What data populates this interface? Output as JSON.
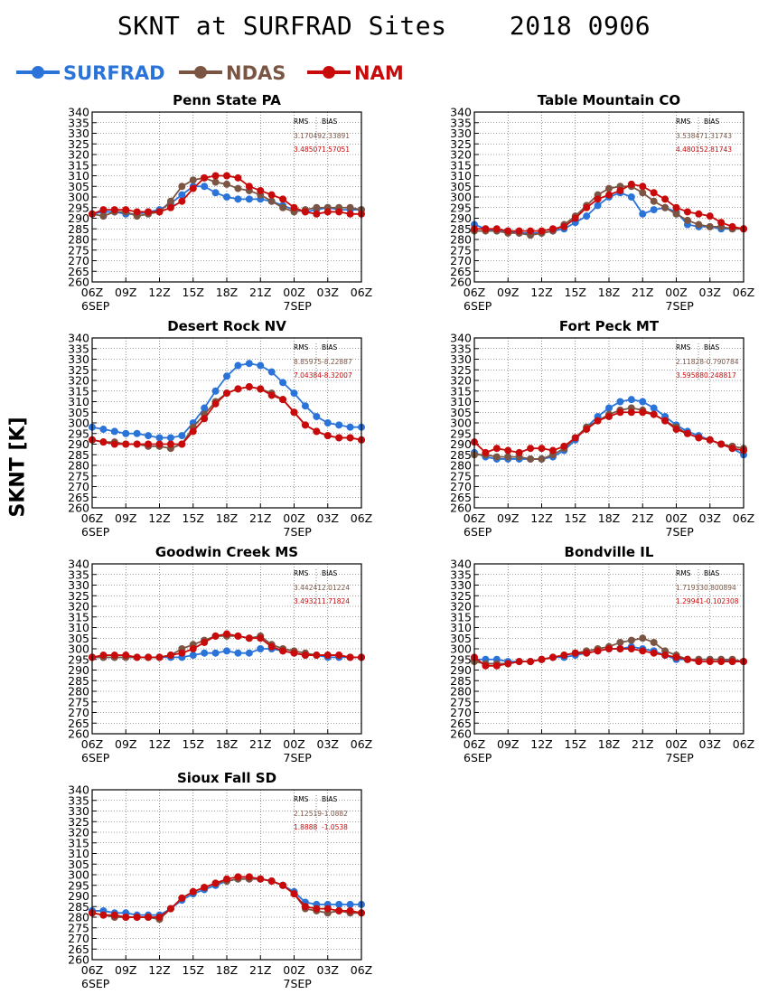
{
  "figure": {
    "title": "SKNT at SURFRAD Sites    2018 0906",
    "ylabel": "SKNT [K]"
  },
  "legend": [
    {
      "name": "SURFRAD",
      "color": "#2a74d9"
    },
    {
      "name": "NDAS",
      "color": "#7b5544"
    },
    {
      "name": "NAM",
      "color": "#c80a0a"
    }
  ],
  "stats_header": [
    "RMS",
    "BIAS"
  ],
  "chart_data": [
    {
      "type": "line",
      "title": "Penn State PA",
      "x_ticks": [
        "06Z",
        "09Z",
        "12Z",
        "15Z",
        "18Z",
        "21Z",
        "00Z",
        "03Z",
        "06Z"
      ],
      "date_labels": [
        "6SEP",
        "7SEP"
      ],
      "ylim": [
        260,
        340
      ],
      "y_ticks": [
        260,
        265,
        270,
        275,
        280,
        285,
        290,
        295,
        300,
        305,
        310,
        315,
        320,
        325,
        330,
        335,
        340
      ],
      "grid": true,
      "stats": {
        "ndas": [
          "3.17049",
          "2.33891"
        ],
        "nam": [
          "3.48507",
          "1.57051"
        ]
      },
      "series": [
        {
          "name": "SURFRAD",
          "values": [
            292,
            293,
            293,
            292,
            292,
            293,
            294,
            297,
            301,
            305,
            305,
            302,
            300,
            299,
            299,
            299,
            298,
            296,
            294,
            293,
            294,
            295,
            294,
            294,
            294
          ]
        },
        {
          "name": "NDAS",
          "values": [
            292,
            291,
            293,
            293,
            291,
            292,
            293,
            298,
            305,
            308,
            309,
            307,
            306,
            304,
            303,
            301,
            298,
            295,
            293,
            294,
            295,
            295,
            295,
            295,
            294
          ]
        },
        {
          "name": "NAM",
          "values": [
            292,
            294,
            294,
            294,
            293,
            293,
            293,
            295,
            298,
            304,
            309,
            310,
            310,
            309,
            305,
            303,
            301,
            299,
            295,
            293,
            292,
            293,
            293,
            292,
            292
          ]
        }
      ]
    },
    {
      "type": "line",
      "title": "Table Mountain CO",
      "x_ticks": [
        "06Z",
        "09Z",
        "12Z",
        "15Z",
        "18Z",
        "21Z",
        "00Z",
        "03Z",
        "06Z"
      ],
      "date_labels": [
        "6SEP",
        "7SEP"
      ],
      "ylim": [
        260,
        340
      ],
      "y_ticks": [
        260,
        265,
        270,
        275,
        280,
        285,
        290,
        295,
        300,
        305,
        310,
        315,
        320,
        325,
        330,
        335,
        340
      ],
      "grid": true,
      "stats": {
        "ndas": [
          "3.53847",
          "1.31743"
        ],
        "nam": [
          "4.48015",
          "2.81743"
        ]
      },
      "series": [
        {
          "name": "SURFRAD",
          "values": [
            287,
            285,
            284,
            284,
            283,
            283,
            283,
            284,
            285,
            288,
            291,
            296,
            300,
            302,
            300,
            292,
            294,
            295,
            293,
            287,
            286,
            286,
            285,
            285,
            285
          ]
        },
        {
          "name": "NDAS",
          "values": [
            284,
            284,
            284,
            283,
            283,
            282,
            283,
            284,
            287,
            291,
            296,
            301,
            304,
            305,
            305,
            302,
            298,
            295,
            292,
            289,
            287,
            286,
            286,
            285,
            285
          ]
        },
        {
          "name": "NAM",
          "values": [
            285,
            285,
            285,
            284,
            284,
            284,
            284,
            285,
            286,
            290,
            295,
            299,
            301,
            303,
            306,
            305,
            302,
            299,
            295,
            293,
            292,
            291,
            288,
            286,
            285
          ]
        }
      ]
    },
    {
      "type": "line",
      "title": "Desert Rock NV",
      "x_ticks": [
        "06Z",
        "09Z",
        "12Z",
        "15Z",
        "18Z",
        "21Z",
        "00Z",
        "03Z",
        "06Z"
      ],
      "date_labels": [
        "6SEP",
        "7SEP"
      ],
      "ylim": [
        260,
        340
      ],
      "y_ticks": [
        260,
        265,
        270,
        275,
        280,
        285,
        290,
        295,
        300,
        305,
        310,
        315,
        320,
        325,
        330,
        335,
        340
      ],
      "grid": true,
      "stats": {
        "ndas": [
          "8.85975",
          "-8.22887"
        ],
        "nam": [
          "7.04384",
          "-8.32007"
        ]
      },
      "series": [
        {
          "name": "SURFRAD",
          "values": [
            298,
            297,
            296,
            295,
            295,
            294,
            293,
            293,
            294,
            300,
            307,
            315,
            322,
            327,
            328,
            327,
            324,
            319,
            314,
            308,
            303,
            300,
            299,
            298,
            298
          ]
        },
        {
          "name": "NDAS",
          "values": [
            292,
            291,
            291,
            290,
            290,
            289,
            289,
            288,
            290,
            298,
            304,
            310,
            314,
            316,
            317,
            316,
            314,
            311,
            305,
            299,
            296,
            294,
            293,
            293,
            292
          ]
        },
        {
          "name": "NAM",
          "values": [
            292,
            291,
            290,
            290,
            290,
            290,
            290,
            290,
            290,
            296,
            302,
            309,
            314,
            316,
            317,
            316,
            313,
            311,
            305,
            299,
            296,
            294,
            293,
            293,
            292
          ]
        }
      ]
    },
    {
      "type": "line",
      "title": "Fort Peck MT",
      "x_ticks": [
        "06Z",
        "09Z",
        "12Z",
        "15Z",
        "18Z",
        "21Z",
        "00Z",
        "03Z",
        "06Z"
      ],
      "date_labels": [
        "6SEP",
        "7SEP"
      ],
      "ylim": [
        260,
        340
      ],
      "y_ticks": [
        260,
        265,
        270,
        275,
        280,
        285,
        290,
        295,
        300,
        305,
        310,
        315,
        320,
        325,
        330,
        335,
        340
      ],
      "grid": true,
      "stats": {
        "ndas": [
          "2.11828",
          "-0.790784"
        ],
        "nam": [
          "3.59588",
          "0.248817"
        ]
      },
      "series": [
        {
          "name": "SURFRAD",
          "values": [
            286,
            284,
            283,
            283,
            283,
            283,
            283,
            284,
            287,
            292,
            298,
            303,
            307,
            310,
            311,
            310,
            307,
            303,
            299,
            296,
            294,
            292,
            290,
            288,
            285
          ]
        },
        {
          "name": "NDAS",
          "values": [
            285,
            285,
            284,
            284,
            284,
            283,
            283,
            285,
            288,
            293,
            298,
            301,
            304,
            306,
            307,
            306,
            304,
            301,
            298,
            295,
            293,
            292,
            290,
            289,
            288
          ]
        },
        {
          "name": "NAM",
          "values": [
            291,
            286,
            288,
            287,
            286,
            288,
            288,
            287,
            289,
            293,
            297,
            301,
            303,
            305,
            305,
            305,
            304,
            301,
            297,
            295,
            293,
            292,
            290,
            288,
            287
          ]
        }
      ]
    },
    {
      "type": "line",
      "title": "Goodwin Creek MS",
      "x_ticks": [
        "06Z",
        "09Z",
        "12Z",
        "15Z",
        "18Z",
        "21Z",
        "00Z",
        "03Z",
        "06Z"
      ],
      "date_labels": [
        "6SEP",
        "7SEP"
      ],
      "ylim": [
        260,
        340
      ],
      "y_ticks": [
        260,
        265,
        270,
        275,
        280,
        285,
        290,
        295,
        300,
        305,
        310,
        315,
        320,
        325,
        330,
        335,
        340
      ],
      "grid": true,
      "stats": {
        "ndas": [
          "3.44241",
          "2.01224"
        ],
        "nam": [
          "3.49321",
          "1.71824"
        ]
      },
      "series": [
        {
          "name": "SURFRAD",
          "values": [
            296,
            296,
            296,
            296,
            296,
            296,
            296,
            296,
            296,
            297,
            298,
            298,
            299,
            298,
            298,
            300,
            300,
            299,
            298,
            297,
            297,
            296,
            296,
            296,
            296
          ]
        },
        {
          "name": "NDAS",
          "values": [
            296,
            296,
            296,
            296,
            296,
            296,
            296,
            297,
            300,
            302,
            304,
            306,
            306,
            306,
            305,
            306,
            302,
            300,
            299,
            298,
            297,
            297,
            297,
            296,
            296
          ]
        },
        {
          "name": "NAM",
          "values": [
            296,
            297,
            297,
            297,
            296,
            296,
            296,
            297,
            298,
            300,
            303,
            306,
            307,
            306,
            305,
            305,
            301,
            299,
            298,
            297,
            297,
            297,
            297,
            296,
            296
          ]
        }
      ]
    },
    {
      "type": "line",
      "title": "Bondville IL",
      "x_ticks": [
        "06Z",
        "09Z",
        "12Z",
        "15Z",
        "18Z",
        "21Z",
        "00Z",
        "03Z",
        "06Z"
      ],
      "date_labels": [
        "6SEP",
        "7SEP"
      ],
      "ylim": [
        260,
        340
      ],
      "y_ticks": [
        260,
        265,
        270,
        275,
        280,
        285,
        290,
        295,
        300,
        305,
        310,
        315,
        320,
        325,
        330,
        335,
        340
      ],
      "grid": true,
      "stats": {
        "ndas": [
          "1.71933",
          "0.800894"
        ],
        "nam": [
          "1.29941",
          "-0.102308"
        ]
      },
      "series": [
        {
          "name": "SURFRAD",
          "values": [
            295,
            295,
            295,
            294,
            294,
            294,
            295,
            296,
            296,
            297,
            298,
            299,
            300,
            300,
            301,
            300,
            299,
            297,
            295,
            295,
            295,
            295,
            295,
            294,
            294
          ]
        },
        {
          "name": "NDAS",
          "values": [
            294,
            293,
            293,
            293,
            294,
            294,
            295,
            296,
            297,
            298,
            299,
            300,
            301,
            303,
            304,
            305,
            303,
            299,
            297,
            295,
            295,
            295,
            295,
            295,
            294
          ]
        },
        {
          "name": "NAM",
          "values": [
            296,
            292,
            292,
            293,
            294,
            294,
            295,
            296,
            297,
            298,
            298,
            299,
            300,
            300,
            300,
            299,
            298,
            297,
            296,
            295,
            294,
            294,
            294,
            294,
            294
          ]
        }
      ]
    },
    {
      "type": "line",
      "title": "Sioux Fall SD",
      "x_ticks": [
        "06Z",
        "09Z",
        "12Z",
        "15Z",
        "18Z",
        "21Z",
        "00Z",
        "03Z",
        "06Z"
      ],
      "date_labels": [
        "6SEP",
        "7SEP"
      ],
      "ylim": [
        260,
        340
      ],
      "y_ticks": [
        260,
        265,
        270,
        275,
        280,
        285,
        290,
        295,
        300,
        305,
        310,
        315,
        320,
        325,
        330,
        335,
        340
      ],
      "grid": true,
      "stats": {
        "ndas": [
          "2.12519",
          "-1.0882"
        ],
        "nam": [
          "1.8888",
          "-1.0538"
        ]
      },
      "series": [
        {
          "name": "SURFRAD",
          "values": [
            283,
            283,
            282,
            282,
            281,
            281,
            281,
            284,
            288,
            291,
            293,
            295,
            297,
            298,
            298,
            298,
            297,
            295,
            292,
            287,
            286,
            286,
            286,
            286,
            286
          ]
        },
        {
          "name": "NDAS",
          "values": [
            282,
            281,
            280,
            280,
            280,
            280,
            279,
            284,
            289,
            292,
            294,
            296,
            297,
            298,
            298,
            298,
            297,
            295,
            291,
            284,
            283,
            282,
            283,
            282,
            282
          ]
        },
        {
          "name": "NAM",
          "values": [
            282,
            281,
            281,
            280,
            280,
            280,
            280,
            284,
            289,
            292,
            294,
            296,
            298,
            299,
            299,
            298,
            297,
            295,
            291,
            285,
            284,
            284,
            283,
            283,
            282
          ]
        }
      ]
    }
  ]
}
